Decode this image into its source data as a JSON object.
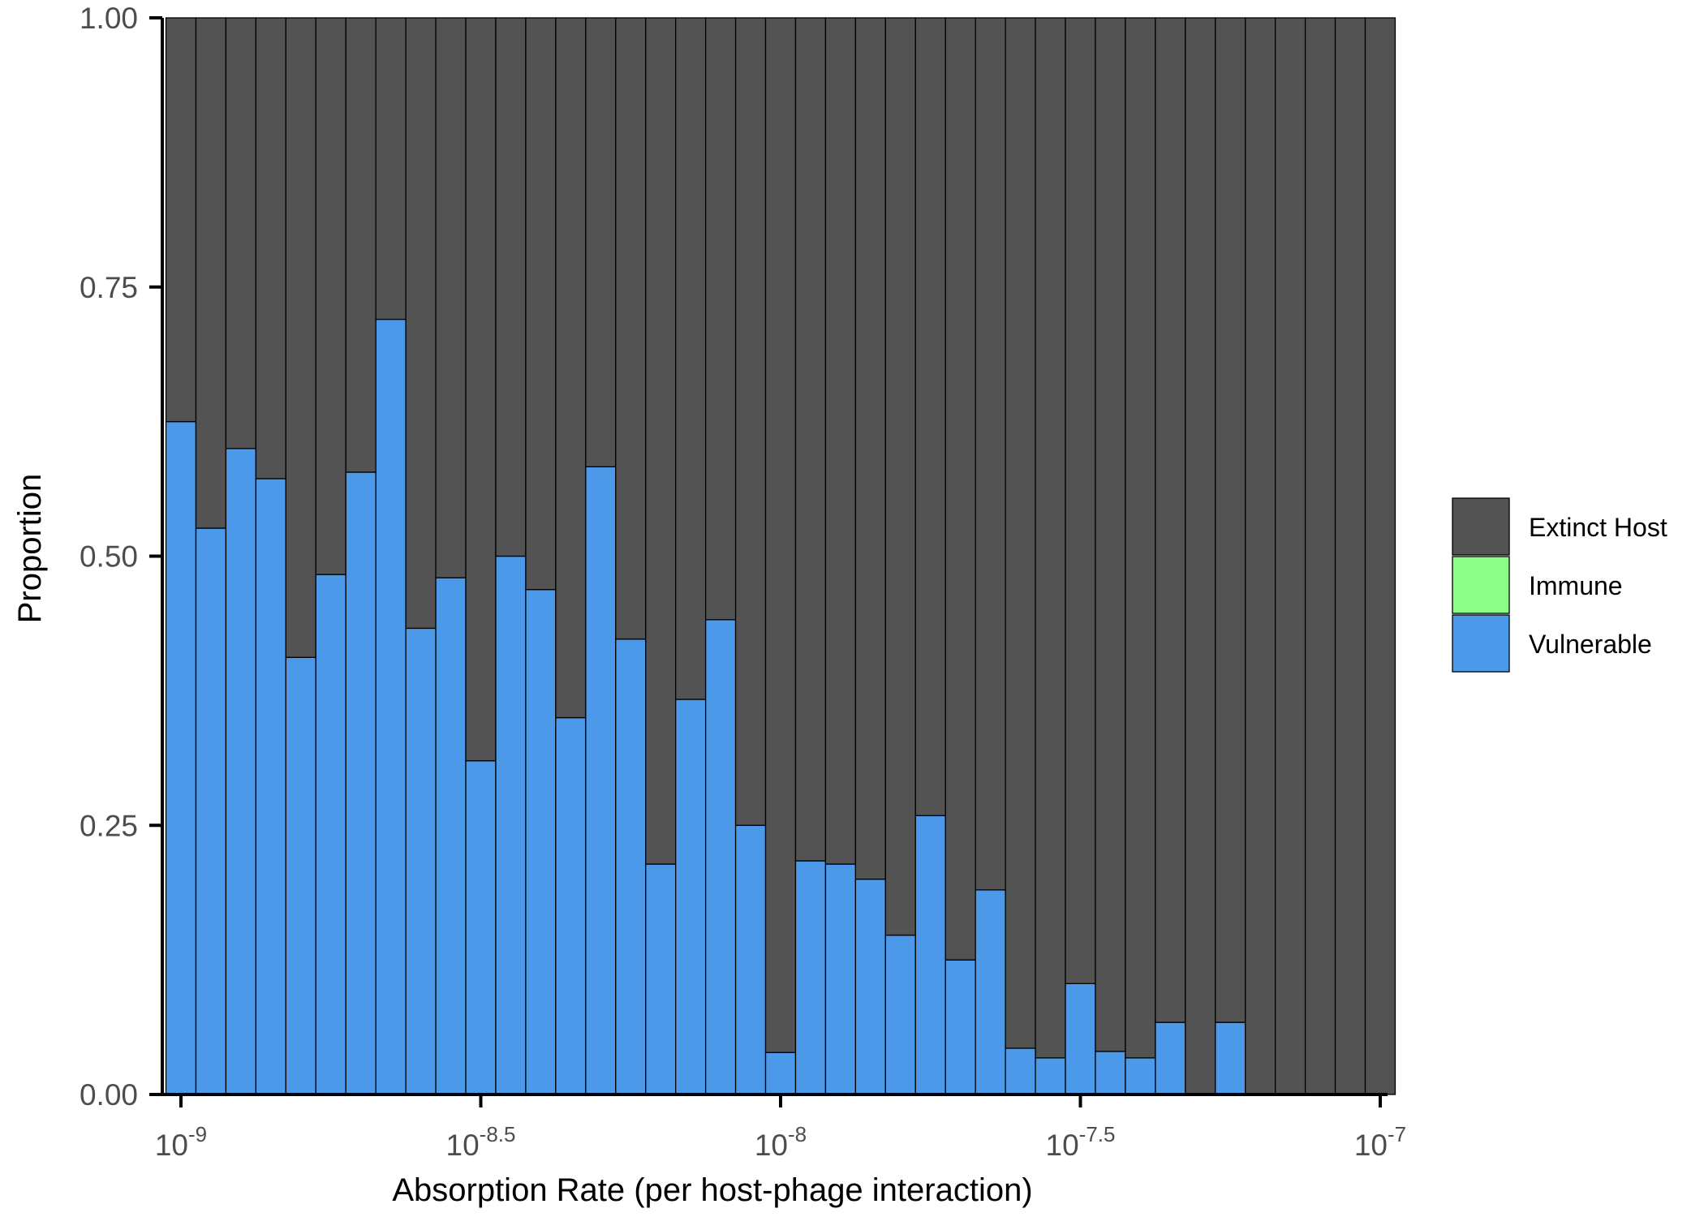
{
  "chart_data": {
    "type": "bar",
    "stacked": true,
    "xlabel": "Absorption Rate (per host-phage interaction)",
    "ylabel": "Proportion",
    "x_scale": "log10",
    "xlim_log10": [
      -9,
      -7
    ],
    "ylim": [
      0,
      1
    ],
    "x_ticks": [
      {
        "base": "10",
        "exp": "-9",
        "log10": -9
      },
      {
        "base": "10",
        "exp": "-8.5",
        "log10": -8.5
      },
      {
        "base": "10",
        "exp": "-8",
        "log10": -8
      },
      {
        "base": "10",
        "exp": "-7.5",
        "log10": -7.5
      },
      {
        "base": "10",
        "exp": "-7",
        "log10": -7
      }
    ],
    "y_ticks": [
      "0.00",
      "0.25",
      "0.50",
      "0.75",
      "1.00"
    ],
    "y_tick_values": [
      0,
      0.25,
      0.5,
      0.75,
      1
    ],
    "bin_centers_log10": [
      -9.0,
      -8.95,
      -8.9,
      -8.85,
      -8.8,
      -8.75,
      -8.7,
      -8.65,
      -8.6,
      -8.55,
      -8.5,
      -8.45,
      -8.4,
      -8.35,
      -8.3,
      -8.25,
      -8.2,
      -8.15,
      -8.1,
      -8.05,
      -8.0,
      -7.95,
      -7.9,
      -7.85,
      -7.8,
      -7.75,
      -7.7,
      -7.65,
      -7.6,
      -7.55,
      -7.5,
      -7.45,
      -7.4,
      -7.35,
      -7.3,
      -7.25,
      -7.2,
      -7.15,
      -7.1,
      -7.05,
      -7.0
    ],
    "series": [
      {
        "name": "Vulnerable",
        "color": "#4c99ea",
        "values": [
          0.625,
          0.526,
          0.6,
          0.572,
          0.406,
          0.483,
          0.578,
          0.72,
          0.433,
          0.48,
          0.31,
          0.5,
          0.469,
          0.35,
          0.583,
          0.423,
          0.214,
          0.367,
          0.441,
          0.25,
          0.039,
          0.217,
          0.214,
          0.2,
          0.148,
          0.259,
          0.125,
          0.19,
          0.043,
          0.034,
          0.103,
          0.04,
          0.034,
          0.067,
          0.0,
          0.067,
          0.0,
          0.0,
          0.0,
          0.0,
          0.0
        ]
      },
      {
        "name": "Immune",
        "color": "#8cff88",
        "values": [
          0,
          0,
          0,
          0,
          0,
          0,
          0,
          0,
          0,
          0,
          0,
          0,
          0,
          0,
          0,
          0,
          0,
          0,
          0,
          0,
          0,
          0,
          0,
          0,
          0,
          0,
          0,
          0,
          0,
          0,
          0,
          0,
          0,
          0,
          0,
          0,
          0,
          0,
          0,
          0,
          0
        ]
      },
      {
        "name": "Extinct Host",
        "color": "#535353",
        "values": [
          0.375,
          0.474,
          0.4,
          0.428,
          0.594,
          0.517,
          0.422,
          0.28,
          0.567,
          0.52,
          0.69,
          0.5,
          0.531,
          0.65,
          0.417,
          0.577,
          0.786,
          0.633,
          0.559,
          0.75,
          0.961,
          0.783,
          0.786,
          0.8,
          0.852,
          0.741,
          0.875,
          0.81,
          0.957,
          0.966,
          0.897,
          0.96,
          0.966,
          0.933,
          1.0,
          0.933,
          1.0,
          1.0,
          1.0,
          1.0,
          1.0
        ]
      }
    ],
    "legend": {
      "placement": "right",
      "entries": [
        {
          "label": "Extinct Host",
          "color": "#535353"
        },
        {
          "label": "Immune",
          "color": "#8cff88"
        },
        {
          "label": "Vulnerable",
          "color": "#4c99ea"
        }
      ]
    }
  }
}
